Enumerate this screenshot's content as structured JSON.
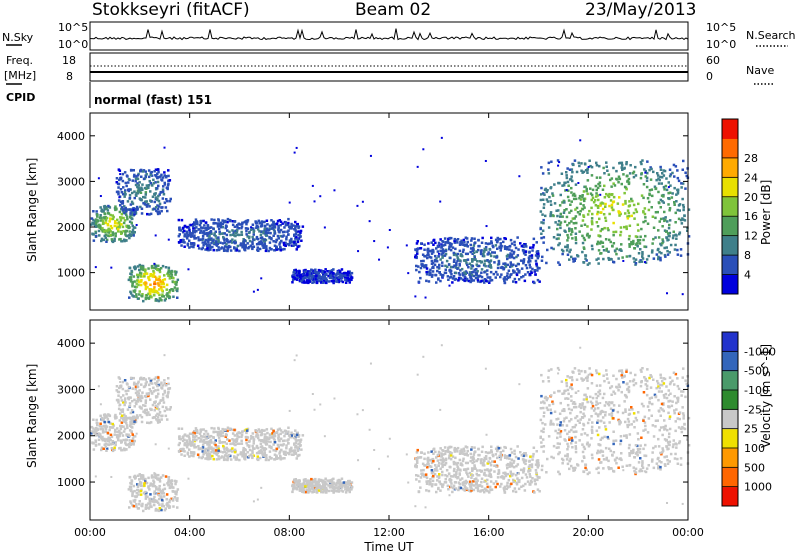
{
  "header": {
    "radar": "Stokkseyri (fitACF)",
    "beam": "Beam 02",
    "date": "23/May/2013"
  },
  "noise_panel": {
    "left_label": "N.Sky",
    "left_ticks": [
      "10^5",
      "10^0"
    ],
    "right_label": "N.Search",
    "right_ticks": [
      "10^5",
      "10^0"
    ]
  },
  "freq_panel": {
    "left_label_1": "Freq.",
    "left_label_2": "[MHz]",
    "left_ticks": [
      "18",
      "8"
    ],
    "right_label": "Nave",
    "right_ticks": [
      "60",
      "0"
    ]
  },
  "cpid": {
    "label": "CPID",
    "program": "normal (fast) 151"
  },
  "chart_data": [
    {
      "type": "heatmap",
      "name": "Power",
      "ylabel": "Slant Range [km]",
      "ylim": [
        180,
        4500
      ],
      "yticks": [
        1000,
        2000,
        3000,
        4000
      ],
      "xlim": [
        0,
        24
      ],
      "colorbar_label": "Power [dB]",
      "colorbar_ticks": [
        "4",
        "8",
        "12",
        "16",
        "20",
        "24",
        "28"
      ],
      "colorscale": [
        "#0000dd",
        "#2a4fb8",
        "#3f7f8a",
        "#4f9e5a",
        "#7fc43a",
        "#e8e000",
        "#ffaa00",
        "#ff6a00",
        "#ee1100"
      ],
      "echo_regions": [
        {
          "t": [
            0.0,
            1.8
          ],
          "range": [
            1700,
            2500
          ],
          "peak_db": 22
        },
        {
          "t": [
            1.0,
            3.2
          ],
          "range": [
            2300,
            3300
          ],
          "peak_db": 10
        },
        {
          "t": [
            1.5,
            3.5
          ],
          "range": [
            400,
            1200
          ],
          "peak_db": 28
        },
        {
          "t": [
            3.5,
            8.5
          ],
          "range": [
            1500,
            2200
          ],
          "peak_db": 8
        },
        {
          "t": [
            8.0,
            10.5
          ],
          "range": [
            800,
            1100
          ],
          "peak_db": 4
        },
        {
          "t": [
            13.0,
            18.0
          ],
          "range": [
            800,
            1800
          ],
          "peak_db": 8
        },
        {
          "t": [
            18.0,
            24.0
          ],
          "range": [
            1200,
            3500
          ],
          "peak_db": 20
        }
      ]
    },
    {
      "type": "heatmap",
      "name": "Velocity",
      "ylabel": "Slant Range [km]",
      "ylim": [
        180,
        4500
      ],
      "yticks": [
        1000,
        2000,
        3000,
        4000
      ],
      "xlim": [
        0,
        24
      ],
      "xticks": [
        "00:00",
        "04:00",
        "08:00",
        "12:00",
        "16:00",
        "20:00",
        "00:00"
      ],
      "xlabel": "Time UT",
      "colorbar_label": "Velocity [m s^-1]",
      "colorbar_ticks": [
        "1000",
        "500",
        "100",
        "25",
        "-25",
        "-100",
        "-500",
        "-1000"
      ],
      "colorscale": [
        "#2233cc",
        "#3366bb",
        "#4a9a6a",
        "#2e8b2e",
        "#c8c8c8",
        "#f0e000",
        "#ff9900",
        "#ff6600",
        "#ee1100"
      ],
      "dominant_value": "ground scatter (grey)"
    }
  ],
  "colors": {
    "plot_border": "#000000",
    "background": "#ffffff"
  }
}
